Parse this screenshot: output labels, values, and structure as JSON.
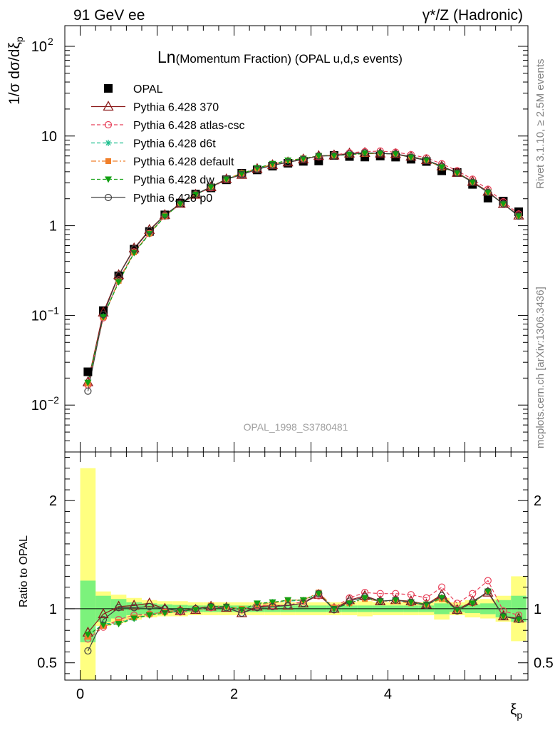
{
  "header": {
    "left": "91 GeV ee",
    "right": "γ*/Z (Hadronic)",
    "title_big": "Ln",
    "title_rest": "(Momentum Fraction) (OPAL u,d,s events)"
  },
  "side_text": {
    "rivet": "Rivet 3.1.10, ≥ 2.5M events",
    "mcplots": "mcplots.cern.ch [arXiv:1306.3436]"
  },
  "analysis_label": "OPAL_1998_S3780481",
  "upper_ylabel": "1/σ dσ/dξp",
  "lower_ylabel": "Ratio to OPAL",
  "xlabel": "ξp",
  "colors": {
    "opal": "#000000",
    "p370": "#8b1a1a",
    "atlas": "#e8415a",
    "d6t": "#1fbf8f",
    "default": "#f07f2a",
    "dw": "#12a012",
    "p0": "#404040",
    "band_inner": "#7cf27c",
    "band_outer": "#ffff80"
  },
  "chart_data": [
    {
      "type": "scatter",
      "yscale": "log",
      "xlim": [
        -0.2,
        5.82
      ],
      "ylim": [
        0.003,
        170
      ],
      "ytick_labels": [
        "10^-2",
        "10^-1",
        "1",
        "10",
        "10^2"
      ],
      "legend_position": "top-left",
      "x": [
        0.1,
        0.3,
        0.5,
        0.7,
        0.9,
        1.1,
        1.3,
        1.5,
        1.7,
        1.9,
        2.1,
        2.3,
        2.5,
        2.7,
        2.9,
        3.1,
        3.3,
        3.5,
        3.7,
        3.9,
        4.1,
        4.3,
        4.5,
        4.7,
        4.9,
        5.1,
        5.3,
        5.5,
        5.7
      ],
      "series": [
        {
          "name": "OPAL",
          "key": "opal",
          "marker": "square",
          "values": [
            0.0235,
            0.113,
            0.276,
            0.547,
            0.862,
            1.32,
            1.79,
            2.25,
            2.64,
            3.25,
            3.85,
            4.19,
            4.61,
            4.97,
            5.22,
            5.27,
            6.07,
            5.91,
            5.83,
            5.98,
            5.82,
            5.51,
            5.2,
            4.09,
            3.92,
            2.89,
            2.03,
            1.88,
            1.43
          ]
        },
        {
          "name": "Pythia 6.428 370",
          "key": "p370",
          "marker": "triangle-open",
          "line": "solid",
          "values": [
            0.018,
            0.108,
            0.282,
            0.56,
            0.9,
            1.32,
            1.76,
            2.22,
            2.7,
            3.3,
            3.7,
            4.3,
            4.75,
            5.1,
            5.5,
            6.0,
            6.1,
            6.4,
            6.5,
            6.4,
            6.3,
            5.9,
            5.4,
            4.6,
            3.9,
            3.1,
            2.4,
            1.75,
            1.3
          ]
        },
        {
          "name": "Pythia 6.428 atlas-csc",
          "key": "atlas",
          "marker": "circle-open",
          "line": "dashed",
          "values": [
            0.0168,
            0.094,
            0.248,
            0.512,
            0.82,
            1.28,
            1.74,
            2.22,
            2.66,
            3.27,
            3.8,
            4.3,
            4.75,
            5.1,
            5.6,
            5.9,
            6.15,
            6.5,
            6.7,
            6.8,
            6.6,
            6.2,
            5.7,
            4.9,
            4.1,
            3.3,
            2.55,
            1.85,
            1.35
          ]
        },
        {
          "name": "Pythia 6.428 d6t",
          "key": "d6t",
          "marker": "star",
          "line": "dashed",
          "values": [
            0.0176,
            0.097,
            0.24,
            0.5,
            0.82,
            1.28,
            1.76,
            2.22,
            2.69,
            3.3,
            3.8,
            4.3,
            4.8,
            5.3,
            5.6,
            6.0,
            6.1,
            6.2,
            6.4,
            6.4,
            6.3,
            5.8,
            5.4,
            4.45,
            3.9,
            3.05,
            2.35,
            1.75,
            1.28
          ]
        },
        {
          "name": "Pythia 6.428 default",
          "key": "default",
          "marker": "square-filled",
          "line": "dashdot",
          "values": [
            0.0173,
            0.095,
            0.243,
            0.504,
            0.82,
            1.29,
            1.77,
            2.24,
            2.72,
            3.32,
            3.85,
            4.35,
            4.82,
            5.35,
            5.62,
            6.05,
            6.1,
            6.2,
            6.35,
            6.4,
            6.25,
            5.8,
            5.4,
            4.45,
            3.9,
            3.05,
            2.35,
            1.75,
            1.28
          ]
        },
        {
          "name": "Pythia 6.428 dw",
          "key": "dw",
          "marker": "triangle-down",
          "line": "dashed",
          "values": [
            0.0178,
            0.096,
            0.235,
            0.497,
            0.81,
            1.27,
            1.75,
            2.22,
            2.7,
            3.3,
            3.8,
            4.4,
            4.9,
            5.35,
            5.6,
            6.0,
            6.05,
            6.2,
            6.4,
            6.4,
            6.3,
            5.8,
            5.4,
            4.5,
            3.9,
            3.05,
            2.35,
            1.75,
            1.28
          ]
        },
        {
          "name": "Pythia 6.428 p0",
          "key": "p0",
          "marker": "circle-open",
          "line": "solid",
          "values": [
            0.0143,
            0.102,
            0.278,
            0.55,
            0.88,
            1.32,
            1.76,
            2.25,
            2.7,
            3.3,
            3.7,
            4.25,
            4.7,
            5.1,
            5.5,
            6.0,
            6.0,
            6.3,
            6.5,
            6.4,
            6.3,
            5.8,
            5.35,
            4.6,
            3.85,
            3.05,
            2.35,
            1.75,
            1.28
          ]
        }
      ]
    },
    {
      "type": "line",
      "xlim": [
        -0.2,
        5.82
      ],
      "ylim": [
        0.34,
        2.45
      ],
      "yticks": [
        0.5,
        1,
        2
      ],
      "xticks": [
        0,
        2,
        4
      ],
      "x": [
        0.1,
        0.3,
        0.5,
        0.7,
        0.9,
        1.1,
        1.3,
        1.5,
        1.7,
        1.9,
        2.1,
        2.3,
        2.5,
        2.7,
        2.9,
        3.1,
        3.3,
        3.5,
        3.7,
        3.9,
        4.1,
        4.3,
        4.5,
        4.7,
        4.9,
        5.1,
        5.3,
        5.5,
        5.7
      ],
      "reference_line": 1,
      "band_inner": [
        [
          0.69,
          1.26
        ],
        [
          0.88,
          1.12
        ],
        [
          0.91,
          1.09
        ],
        [
          0.94,
          1.06
        ],
        [
          0.95,
          1.05
        ],
        [
          0.96,
          1.04
        ],
        [
          0.965,
          1.035
        ],
        [
          0.97,
          1.03
        ],
        [
          0.97,
          1.03
        ],
        [
          0.97,
          1.03
        ],
        [
          0.97,
          1.03
        ],
        [
          0.97,
          1.03
        ],
        [
          0.97,
          1.03
        ],
        [
          0.97,
          1.03
        ],
        [
          0.97,
          1.03
        ],
        [
          0.97,
          1.03
        ],
        [
          0.97,
          1.03
        ],
        [
          0.97,
          1.03
        ],
        [
          0.97,
          1.03
        ],
        [
          0.97,
          1.03
        ],
        [
          0.97,
          1.03
        ],
        [
          0.97,
          1.03
        ],
        [
          0.97,
          1.03
        ],
        [
          0.95,
          1.05
        ],
        [
          0.97,
          1.03
        ],
        [
          0.96,
          1.04
        ],
        [
          0.95,
          1.05
        ],
        [
          0.92,
          1.08
        ],
        [
          0.88,
          1.12
        ]
      ],
      "band_outer": [
        [
          0.2,
          2.3
        ],
        [
          0.84,
          1.16
        ],
        [
          0.87,
          1.13
        ],
        [
          0.9,
          1.1
        ],
        [
          0.92,
          1.08
        ],
        [
          0.93,
          1.07
        ],
        [
          0.93,
          1.07
        ],
        [
          0.94,
          1.06
        ],
        [
          0.94,
          1.06
        ],
        [
          0.94,
          1.06
        ],
        [
          0.94,
          1.06
        ],
        [
          0.94,
          1.06
        ],
        [
          0.94,
          1.06
        ],
        [
          0.94,
          1.06
        ],
        [
          0.94,
          1.06
        ],
        [
          0.94,
          1.06
        ],
        [
          0.94,
          1.06
        ],
        [
          0.94,
          1.06
        ],
        [
          0.93,
          1.07
        ],
        [
          0.94,
          1.06
        ],
        [
          0.94,
          1.06
        ],
        [
          0.94,
          1.06
        ],
        [
          0.94,
          1.06
        ],
        [
          0.9,
          1.1
        ],
        [
          0.94,
          1.06
        ],
        [
          0.92,
          1.08
        ],
        [
          0.91,
          1.09
        ],
        [
          0.88,
          1.12
        ],
        [
          0.7,
          1.3
        ]
      ],
      "series": [
        {
          "name": "Pythia 6.428 370",
          "key": "p370",
          "marker": "triangle-open",
          "line": "solid",
          "values": [
            0.78,
            0.95,
            1.02,
            1.03,
            1.05,
            1.0,
            0.98,
            0.99,
            1.02,
            1.01,
            0.96,
            1.02,
            1.03,
            1.03,
            1.05,
            1.13,
            1.0,
            1.08,
            1.12,
            1.07,
            1.08,
            1.07,
            1.04,
            1.13,
            0.99,
            1.07,
            1.15,
            0.93,
            0.91
          ]
        },
        {
          "name": "Pythia 6.428 atlas-csc",
          "key": "atlas",
          "marker": "circle-open",
          "line": "dashed",
          "values": [
            0.72,
            0.83,
            0.9,
            0.94,
            0.95,
            0.97,
            0.97,
            0.99,
            1.01,
            1.01,
            0.99,
            1.03,
            1.03,
            1.03,
            1.07,
            1.12,
            1.01,
            1.1,
            1.15,
            1.14,
            1.14,
            1.13,
            1.1,
            1.2,
            1.05,
            1.14,
            1.26,
            0.98,
            0.94
          ]
        },
        {
          "name": "Pythia 6.428 d6t",
          "key": "d6t",
          "marker": "star",
          "line": "dashed",
          "values": [
            0.75,
            0.86,
            0.87,
            0.91,
            0.95,
            0.97,
            0.98,
            0.99,
            1.02,
            1.02,
            0.99,
            1.04,
            1.06,
            1.07,
            1.08,
            1.14,
            1.0,
            1.05,
            1.1,
            1.07,
            1.08,
            1.06,
            1.04,
            1.09,
            0.99,
            1.05,
            1.16,
            0.93,
            0.9
          ]
        },
        {
          "name": "Pythia 6.428 default",
          "key": "default",
          "marker": "square-filled",
          "line": "dashdot",
          "values": [
            0.74,
            0.84,
            0.88,
            0.92,
            0.95,
            0.97,
            0.99,
            1.0,
            1.03,
            1.02,
            1.0,
            1.04,
            1.05,
            1.08,
            1.08,
            1.15,
            1.01,
            1.05,
            1.09,
            1.07,
            1.07,
            1.05,
            1.04,
            1.09,
            0.99,
            1.05,
            1.16,
            0.93,
            0.9
          ]
        },
        {
          "name": "Pythia 6.428 dw",
          "key": "dw",
          "marker": "triangle-down",
          "line": "dashed",
          "values": [
            0.76,
            0.85,
            0.86,
            0.91,
            0.94,
            0.96,
            0.98,
            0.99,
            1.02,
            1.02,
            0.99,
            1.05,
            1.06,
            1.08,
            1.08,
            1.14,
            1.0,
            1.05,
            1.1,
            1.07,
            1.08,
            1.06,
            1.04,
            1.1,
            0.99,
            1.05,
            1.16,
            0.93,
            0.9
          ]
        },
        {
          "name": "Pythia 6.428 p0",
          "key": "p0",
          "marker": "circle-open",
          "line": "solid",
          "values": [
            0.61,
            0.9,
            1.01,
            1.01,
            1.02,
            1.0,
            0.98,
            1.0,
            1.02,
            1.01,
            0.96,
            1.01,
            1.02,
            1.03,
            1.05,
            1.14,
            0.99,
            1.07,
            1.11,
            1.07,
            1.08,
            1.06,
            1.03,
            1.12,
            0.98,
            1.06,
            1.16,
            0.93,
            0.9
          ]
        }
      ]
    }
  ]
}
